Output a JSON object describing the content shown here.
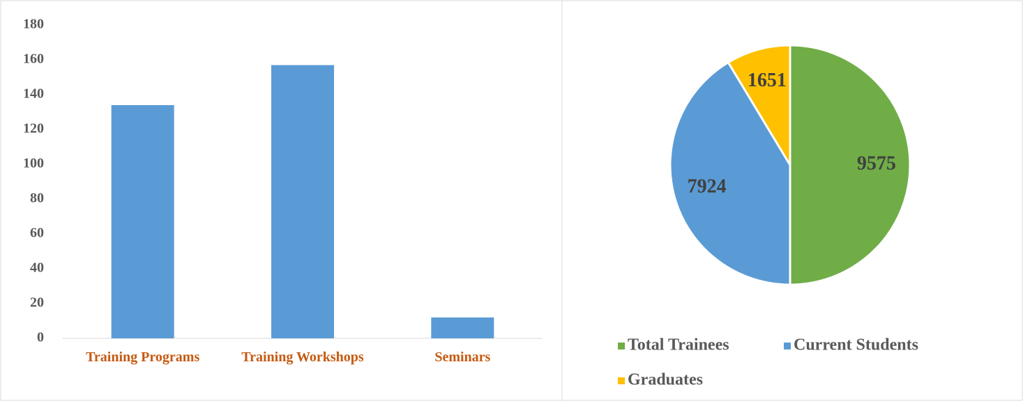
{
  "chart_data": [
    {
      "type": "bar",
      "categories": [
        "Training Programs",
        "Training Workshops",
        "Seminars"
      ],
      "values": [
        134,
        157,
        12
      ],
      "color": "#5b9bd5",
      "ylim": [
        0,
        180
      ],
      "yticks": [
        0,
        20,
        40,
        60,
        80,
        100,
        120,
        140,
        160,
        180
      ],
      "grid": false
    },
    {
      "type": "pie",
      "categories": [
        "Total Trainees",
        "Current Students",
        "Graduates"
      ],
      "values": [
        9575,
        7924,
        1651
      ],
      "colors": [
        "#70ad47",
        "#5b9bd5",
        "#ffc000"
      ],
      "legend": "bottom"
    }
  ]
}
